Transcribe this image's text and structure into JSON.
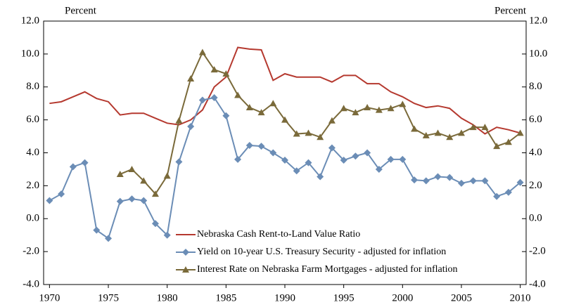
{
  "chart_data": {
    "type": "line",
    "y_label": "Percent",
    "y2_label": "Percent",
    "x": [
      1970,
      1971,
      1972,
      1973,
      1974,
      1975,
      1976,
      1977,
      1978,
      1979,
      1980,
      1981,
      1982,
      1983,
      1984,
      1985,
      1986,
      1987,
      1988,
      1989,
      1990,
      1991,
      1992,
      1993,
      1994,
      1995,
      1996,
      1997,
      1998,
      1999,
      2000,
      2001,
      2002,
      2003,
      2004,
      2005,
      2006,
      2007,
      2008,
      2009,
      2010
    ],
    "xlim": [
      1969.5,
      2010.5
    ],
    "xticks": [
      1970,
      1975,
      1980,
      1985,
      1990,
      1995,
      2000,
      2005,
      2010
    ],
    "ylim": [
      -4,
      12
    ],
    "yticks": [
      {
        "value": -4,
        "label": "-4.0"
      },
      {
        "value": -2,
        "label": "-2.0"
      },
      {
        "value": 0,
        "label": "0.0"
      },
      {
        "value": 2,
        "label": "2.0"
      },
      {
        "value": 4,
        "label": "4.0"
      },
      {
        "value": 6,
        "label": "6.0"
      },
      {
        "value": 8,
        "label": "8.0"
      },
      {
        "value": 10,
        "label": "10.0"
      },
      {
        "value": 12,
        "label": "12.0"
      }
    ],
    "y2lim": [
      -4,
      12
    ],
    "y2ticks": [
      {
        "value": -4,
        "label": "-4.0"
      },
      {
        "value": -2,
        "label": "-2.0"
      },
      {
        "value": 0,
        "label": "0.0"
      },
      {
        "value": 2,
        "label": "2.0"
      },
      {
        "value": 4,
        "label": "4.0"
      },
      {
        "value": 6,
        "label": "6.0"
      },
      {
        "value": 8,
        "label": "8.0"
      },
      {
        "value": 10,
        "label": "10.0"
      },
      {
        "value": 12,
        "label": "12.0"
      }
    ],
    "legend": "lower right",
    "series": [
      {
        "name": "Nebraska Cash Rent-to-Land Value Ratio",
        "color": "#b5392f",
        "marker": "none",
        "values": [
          7.0,
          7.1,
          7.4,
          7.7,
          7.3,
          7.1,
          6.3,
          6.4,
          6.4,
          6.1,
          5.8,
          5.7,
          6.0,
          6.6,
          8.0,
          8.6,
          10.4,
          10.3,
          10.25,
          8.4,
          8.8,
          8.6,
          8.6,
          8.6,
          8.3,
          8.7,
          8.7,
          8.2,
          8.2,
          7.7,
          7.4,
          7.0,
          6.75,
          6.85,
          6.7,
          6.1,
          5.7,
          5.15,
          5.55,
          5.4,
          5.2
        ]
      },
      {
        "name": "Yield on 10-year U.S. Treasury Security - adjusted for inflation",
        "color": "#6b8db6",
        "marker": "diamond",
        "values": [
          1.1,
          1.5,
          3.15,
          3.4,
          -0.7,
          -1.2,
          1.05,
          1.2,
          1.1,
          -0.3,
          -1.0,
          3.45,
          5.6,
          7.2,
          7.35,
          6.25,
          3.6,
          4.45,
          4.4,
          4.0,
          3.55,
          2.9,
          3.4,
          2.55,
          4.3,
          3.55,
          3.8,
          4.0,
          3.0,
          3.6,
          3.6,
          2.35,
          2.3,
          2.55,
          2.5,
          2.15,
          2.3,
          2.3,
          1.35,
          1.6,
          2.2
        ]
      },
      {
        "name": "Interest Rate on Nebraska Farm Mortgages - adjusted for inflation",
        "color": "#7a6a3a",
        "marker": "triangle",
        "values": [
          null,
          null,
          null,
          null,
          null,
          null,
          2.7,
          3.0,
          2.3,
          1.5,
          2.6,
          5.95,
          8.5,
          10.1,
          9.05,
          8.8,
          7.5,
          6.75,
          6.45,
          7.0,
          6.0,
          5.15,
          5.2,
          4.95,
          5.95,
          6.7,
          6.45,
          6.75,
          6.6,
          6.7,
          6.95,
          5.45,
          5.05,
          5.2,
          4.95,
          5.2,
          5.55,
          5.55,
          4.4,
          4.65,
          5.2
        ]
      }
    ]
  }
}
